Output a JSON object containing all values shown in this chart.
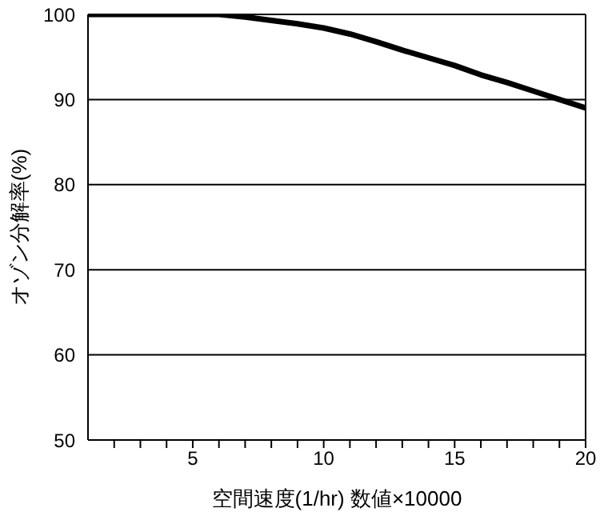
{
  "chart_data": {
    "type": "line",
    "xlabel": "空間速度(1/hr)  数値×10000",
    "ylabel": "オゾン分解率(%)",
    "x": [
      1,
      2,
      3,
      4,
      5,
      6,
      7,
      8,
      9,
      10,
      11,
      12,
      13,
      14,
      15,
      16,
      17,
      18,
      19,
      20
    ],
    "series": [
      {
        "color": "#000000",
        "values": [
          100,
          100,
          100,
          100,
          100,
          100,
          99.7,
          99.3,
          98.9,
          98.4,
          97.7,
          96.8,
          95.8,
          94.9,
          94.0,
          92.9,
          92.0,
          91.0,
          90.0,
          89.0
        ]
      }
    ],
    "xlim": [
      1,
      20
    ],
    "xticks": [
      {
        "value": 2,
        "label": null
      },
      {
        "value": 3,
        "label": null
      },
      {
        "value": 4,
        "label": null
      },
      5,
      {
        "value": 6,
        "label": null
      },
      {
        "value": 7,
        "label": null
      },
      {
        "value": 8,
        "label": null
      },
      {
        "value": 9,
        "label": null
      },
      10,
      {
        "value": 11,
        "label": null
      },
      {
        "value": 12,
        "label": null
      },
      {
        "value": 13,
        "label": null
      },
      {
        "value": 14,
        "label": null
      },
      15,
      {
        "value": 16,
        "label": null
      },
      {
        "value": 17,
        "label": null
      },
      {
        "value": 18,
        "label": null
      },
      {
        "value": 19,
        "label": null
      },
      20
    ],
    "ylim": [
      50,
      100
    ],
    "yticks": [
      50,
      60,
      70,
      80,
      90,
      100
    ],
    "grid": "y",
    "legend": false,
    "marker": "none",
    "line_style": "solid"
  }
}
